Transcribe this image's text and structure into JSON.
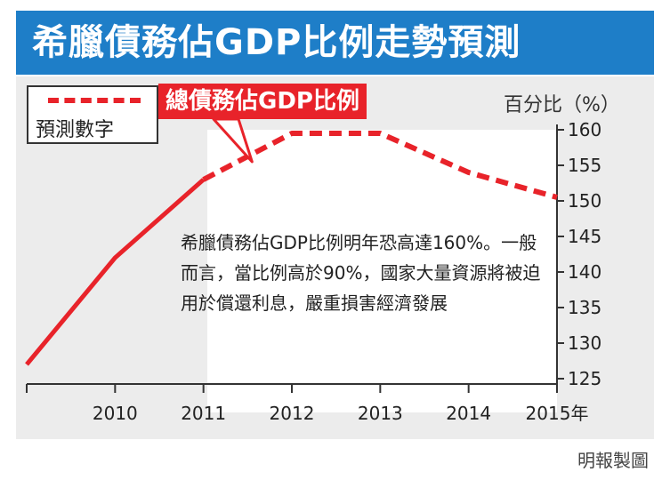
{
  "banner": {
    "title": "希臘債務佔GDP比例走勢預測"
  },
  "legend": {
    "label": "預測數字"
  },
  "series_tag": "總債務佔GDP比例",
  "unit_label": "百分比（%）",
  "note": "希臘債務佔GDP比例明年恐高達160%。一般而言，當比例高於90%，國家大量資源將被迫用於償還利息，嚴重損害經濟發展",
  "credit": "明報製圖",
  "colors": {
    "banner": "#1e7ec8",
    "series": "#e8232a",
    "panel": "#ececec"
  },
  "chart_data": {
    "type": "line",
    "x": [
      2009,
      2010,
      2011,
      2012,
      2013,
      2014,
      2015
    ],
    "x_tick_labels": [
      "",
      "2010",
      "2011",
      "2012",
      "2013",
      "2014",
      "2015年"
    ],
    "series": [
      {
        "name": "總債務佔GDP比例",
        "values": [
          127,
          142,
          153,
          159.5,
          159.5,
          154,
          150.5
        ],
        "style": "solid-then-dashed",
        "dashed_from": 2011
      }
    ],
    "yticks": [
      125,
      130,
      135,
      140,
      145,
      150,
      155,
      160
    ],
    "ylim": [
      125,
      160
    ],
    "ylabel": "百分比（%）",
    "y_axis_side": "right",
    "grid": false,
    "legend_position": "top-left"
  }
}
